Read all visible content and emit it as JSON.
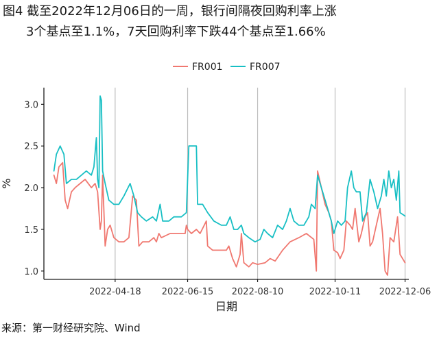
{
  "title_line1": "图4  截至2022年12月06日的一周，银行间隔夜回购利率上涨",
  "title_line2": "3个基点至1.1%，7天回购利率下跌44个基点至1.66%",
  "source": "来源：第一财经研究院、Wind",
  "chart_data": {
    "type": "line",
    "xlabel": "日期",
    "ylabel": "%",
    "ylim": [
      0.9,
      3.2
    ],
    "yticks": [
      1.0,
      1.5,
      2.0,
      2.5,
      3.0
    ],
    "ytick_labels": [
      "1.0",
      "1.5",
      "2.0",
      "2.5",
      "3.0"
    ],
    "xlim": [
      "2022-02-20",
      "2022-12-09"
    ],
    "xticks": [
      "2022-04-18",
      "2022-06-15",
      "2022-08-10",
      "2022-10-11",
      "2022-12-06"
    ],
    "grid": "vertical lines at x ticks",
    "legend_position": "top-center",
    "series": [
      {
        "name": "FR001",
        "color": "#F07870",
        "points": [
          [
            "2022-02-28",
            2.15
          ],
          [
            "2022-03-02",
            2.05
          ],
          [
            "2022-03-04",
            2.25
          ],
          [
            "2022-03-07",
            2.3
          ],
          [
            "2022-03-09",
            1.85
          ],
          [
            "2022-03-11",
            1.75
          ],
          [
            "2022-03-14",
            1.95
          ],
          [
            "2022-03-17",
            2.0
          ],
          [
            "2022-03-21",
            2.05
          ],
          [
            "2022-03-25",
            2.1
          ],
          [
            "2022-03-30",
            2.0
          ],
          [
            "2022-04-02",
            2.05
          ],
          [
            "2022-04-04",
            1.95
          ],
          [
            "2022-04-06",
            1.5
          ],
          [
            "2022-04-07",
            1.6
          ],
          [
            "2022-04-08",
            2.15
          ],
          [
            "2022-04-10",
            1.3
          ],
          [
            "2022-04-12",
            1.5
          ],
          [
            "2022-04-14",
            1.55
          ],
          [
            "2022-04-17",
            1.4
          ],
          [
            "2022-04-21",
            1.35
          ],
          [
            "2022-04-25",
            1.35
          ],
          [
            "2022-04-29",
            1.4
          ],
          [
            "2022-05-02",
            1.9
          ],
          [
            "2022-05-05",
            1.85
          ],
          [
            "2022-05-07",
            1.3
          ],
          [
            "2022-05-10",
            1.35
          ],
          [
            "2022-05-15",
            1.35
          ],
          [
            "2022-05-19",
            1.4
          ],
          [
            "2022-05-21",
            1.35
          ],
          [
            "2022-05-23",
            1.45
          ],
          [
            "2022-05-25",
            1.4
          ],
          [
            "2022-06-01",
            1.45
          ],
          [
            "2022-06-08",
            1.45
          ],
          [
            "2022-06-13",
            1.45
          ],
          [
            "2022-06-14",
            1.55
          ],
          [
            "2022-06-15",
            1.5
          ],
          [
            "2022-06-18",
            1.45
          ],
          [
            "2022-06-22",
            1.5
          ],
          [
            "2022-06-25",
            1.45
          ],
          [
            "2022-06-30",
            1.6
          ],
          [
            "2022-07-01",
            1.3
          ],
          [
            "2022-07-05",
            1.25
          ],
          [
            "2022-07-12",
            1.25
          ],
          [
            "2022-07-16",
            1.25
          ],
          [
            "2022-07-18",
            1.3
          ],
          [
            "2022-07-21",
            1.15
          ],
          [
            "2022-07-24",
            1.05
          ],
          [
            "2022-07-27",
            1.2
          ],
          [
            "2022-07-28",
            1.45
          ],
          [
            "2022-07-30",
            1.1
          ],
          [
            "2022-08-03",
            1.05
          ],
          [
            "2022-08-06",
            1.1
          ],
          [
            "2022-08-10",
            1.08
          ],
          [
            "2022-08-16",
            1.1
          ],
          [
            "2022-08-20",
            1.15
          ],
          [
            "2022-08-24",
            1.12
          ],
          [
            "2022-08-30",
            1.25
          ],
          [
            "2022-09-05",
            1.35
          ],
          [
            "2022-09-12",
            1.4
          ],
          [
            "2022-09-18",
            1.45
          ],
          [
            "2022-09-24",
            1.38
          ],
          [
            "2022-09-26",
            1.0
          ],
          [
            "2022-09-27",
            2.2
          ],
          [
            "2022-09-30",
            2.0
          ],
          [
            "2022-10-03",
            1.8
          ],
          [
            "2022-10-06",
            1.7
          ],
          [
            "2022-10-08",
            1.6
          ],
          [
            "2022-10-10",
            1.25
          ],
          [
            "2022-10-13",
            1.22
          ],
          [
            "2022-10-15",
            1.15
          ],
          [
            "2022-10-18",
            1.25
          ],
          [
            "2022-10-20",
            1.6
          ],
          [
            "2022-10-23",
            1.55
          ],
          [
            "2022-10-25",
            1.5
          ],
          [
            "2022-10-27",
            1.75
          ],
          [
            "2022-10-30",
            1.35
          ],
          [
            "2022-11-01",
            1.45
          ],
          [
            "2022-11-04",
            1.65
          ],
          [
            "2022-11-06",
            1.7
          ],
          [
            "2022-11-08",
            1.3
          ],
          [
            "2022-11-10",
            1.35
          ],
          [
            "2022-11-13",
            1.55
          ],
          [
            "2022-11-16",
            1.75
          ],
          [
            "2022-11-18",
            1.45
          ],
          [
            "2022-11-20",
            1.0
          ],
          [
            "2022-11-22",
            0.95
          ],
          [
            "2022-11-24",
            1.4
          ],
          [
            "2022-11-27",
            1.35
          ],
          [
            "2022-11-30",
            1.65
          ],
          [
            "2022-12-02",
            1.2
          ],
          [
            "2022-12-04",
            1.15
          ],
          [
            "2022-12-06",
            1.1
          ]
        ]
      },
      {
        "name": "FR007",
        "color": "#18BFC4",
        "points": [
          [
            "2022-02-28",
            2.2
          ],
          [
            "2022-03-02",
            2.4
          ],
          [
            "2022-03-05",
            2.5
          ],
          [
            "2022-03-08",
            2.4
          ],
          [
            "2022-03-10",
            2.05
          ],
          [
            "2022-03-14",
            2.1
          ],
          [
            "2022-03-18",
            2.1
          ],
          [
            "2022-03-22",
            2.15
          ],
          [
            "2022-03-26",
            2.2
          ],
          [
            "2022-03-30",
            2.15
          ],
          [
            "2022-04-01",
            2.25
          ],
          [
            "2022-04-03",
            2.6
          ],
          [
            "2022-04-04",
            2.1
          ],
          [
            "2022-04-05",
            2.0
          ],
          [
            "2022-04-06",
            3.1
          ],
          [
            "2022-04-07",
            3.05
          ],
          [
            "2022-04-08",
            2.2
          ],
          [
            "2022-04-10",
            2.05
          ],
          [
            "2022-04-13",
            1.85
          ],
          [
            "2022-04-17",
            1.8
          ],
          [
            "2022-04-21",
            1.8
          ],
          [
            "2022-04-25",
            1.9
          ],
          [
            "2022-04-30",
            2.05
          ],
          [
            "2022-05-03",
            1.9
          ],
          [
            "2022-05-06",
            1.7
          ],
          [
            "2022-05-09",
            1.65
          ],
          [
            "2022-05-13",
            1.6
          ],
          [
            "2022-05-18",
            1.65
          ],
          [
            "2022-05-21",
            1.6
          ],
          [
            "2022-05-24",
            1.8
          ],
          [
            "2022-05-26",
            1.6
          ],
          [
            "2022-05-31",
            1.6
          ],
          [
            "2022-06-04",
            1.65
          ],
          [
            "2022-06-10",
            1.65
          ],
          [
            "2022-06-14",
            1.7
          ],
          [
            "2022-06-16",
            2.5
          ],
          [
            "2022-06-22",
            2.5
          ],
          [
            "2022-06-23",
            1.8
          ],
          [
            "2022-06-27",
            1.8
          ],
          [
            "2022-07-01",
            1.7
          ],
          [
            "2022-07-06",
            1.6
          ],
          [
            "2022-07-12",
            1.55
          ],
          [
            "2022-07-16",
            1.55
          ],
          [
            "2022-07-19",
            1.65
          ],
          [
            "2022-07-22",
            1.5
          ],
          [
            "2022-07-25",
            1.5
          ],
          [
            "2022-07-28",
            1.55
          ],
          [
            "2022-07-30",
            1.45
          ],
          [
            "2022-08-03",
            1.4
          ],
          [
            "2022-08-08",
            1.35
          ],
          [
            "2022-08-12",
            1.38
          ],
          [
            "2022-08-15",
            1.5
          ],
          [
            "2022-08-18",
            1.45
          ],
          [
            "2022-08-22",
            1.4
          ],
          [
            "2022-08-26",
            1.55
          ],
          [
            "2022-08-30",
            1.5
          ],
          [
            "2022-09-02",
            1.6
          ],
          [
            "2022-09-05",
            1.75
          ],
          [
            "2022-09-08",
            1.6
          ],
          [
            "2022-09-12",
            1.55
          ],
          [
            "2022-09-16",
            1.55
          ],
          [
            "2022-09-20",
            1.65
          ],
          [
            "2022-09-22",
            1.8
          ],
          [
            "2022-09-25",
            1.75
          ],
          [
            "2022-09-27",
            2.15
          ],
          [
            "2022-09-30",
            2.0
          ],
          [
            "2022-10-04",
            1.8
          ],
          [
            "2022-10-08",
            1.6
          ],
          [
            "2022-10-10",
            1.45
          ],
          [
            "2022-10-13",
            1.6
          ],
          [
            "2022-10-16",
            1.55
          ],
          [
            "2022-10-19",
            1.6
          ],
          [
            "2022-10-21",
            2.0
          ],
          [
            "2022-10-24",
            2.2
          ],
          [
            "2022-10-26",
            2.0
          ],
          [
            "2022-10-28",
            1.95
          ],
          [
            "2022-10-31",
            1.95
          ],
          [
            "2022-11-02",
            1.6
          ],
          [
            "2022-11-05",
            1.7
          ],
          [
            "2022-11-08",
            2.1
          ],
          [
            "2022-11-11",
            1.95
          ],
          [
            "2022-11-14",
            1.75
          ],
          [
            "2022-11-17",
            1.9
          ],
          [
            "2022-11-19",
            2.1
          ],
          [
            "2022-11-21",
            1.9
          ],
          [
            "2022-11-23",
            2.2
          ],
          [
            "2022-11-25",
            2.0
          ],
          [
            "2022-11-27",
            2.1
          ],
          [
            "2022-11-29",
            1.85
          ],
          [
            "2022-12-01",
            2.2
          ],
          [
            "2022-12-02",
            1.7
          ],
          [
            "2022-12-04",
            1.68
          ],
          [
            "2022-12-06",
            1.66
          ]
        ]
      }
    ]
  }
}
